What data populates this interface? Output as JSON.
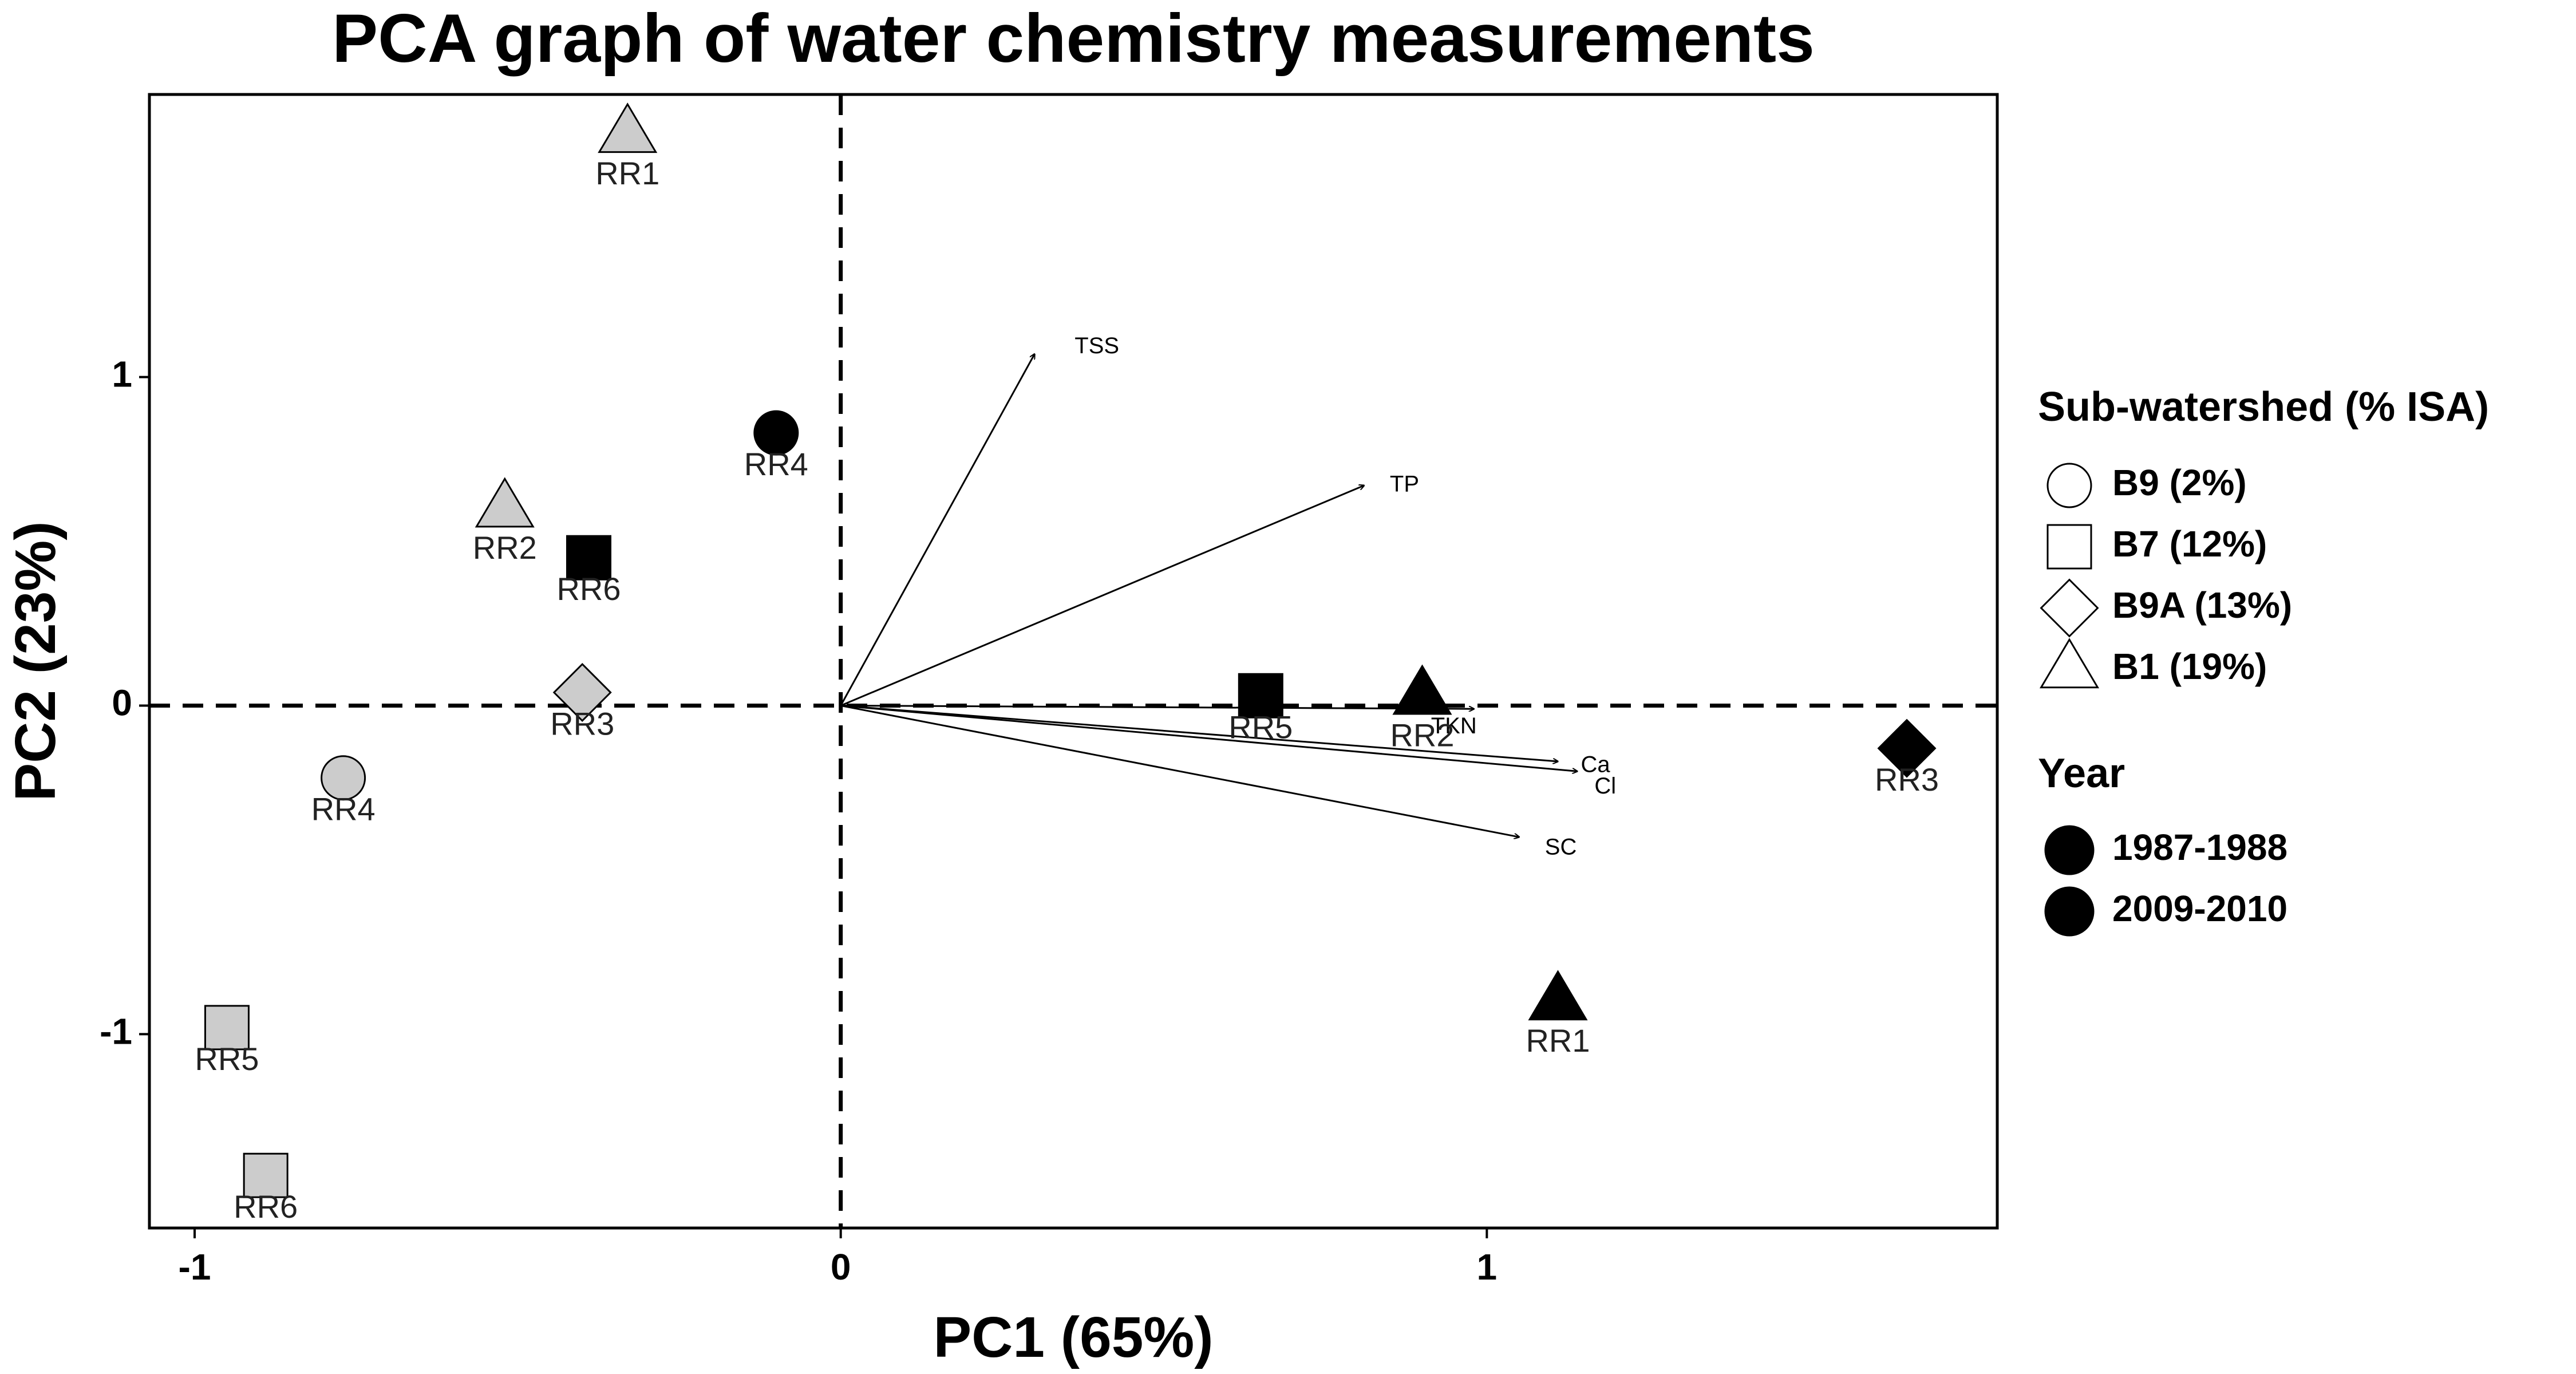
{
  "chart_data": {
    "type": "scatter",
    "title": "PCA graph of water chemistry measurements",
    "xlabel": "PC1 (65%)",
    "ylabel": "PC2 (23%)",
    "xlim": [
      -1.07,
      1.79
    ],
    "ylim": [
      -1.59,
      1.86
    ],
    "xticks": [
      -1,
      0,
      1
    ],
    "xtick_labels": [
      "-1",
      "0",
      "1"
    ],
    "yticks": [
      -1,
      0,
      1
    ],
    "ytick_labels": [
      "-1",
      "0",
      "1"
    ],
    "reference_lines": [
      "x = 0 (dashed)",
      "y = 0 (dashed)"
    ],
    "grid": false,
    "legend_position": "right",
    "legend": {
      "shape_title": "Sub-watershed (% ISA)",
      "shapes": [
        {
          "label": "B9 (2%)",
          "shape": "circle"
        },
        {
          "label": "B7 (12%)",
          "shape": "square"
        },
        {
          "label": "B9A (13%)",
          "shape": "diamond"
        },
        {
          "label": "B1 (19%)",
          "shape": "triangle"
        }
      ],
      "year_title": "Year",
      "years": [
        {
          "label": "1987-1988",
          "color": "#000000"
        },
        {
          "label": "2009-2010",
          "color": "#000000"
        }
      ]
    },
    "point_colors": {
      "1987-1988": "#000000",
      "2009-2010": "#cccccc"
    },
    "points": [
      {
        "label": "RR1",
        "shape": "triangle",
        "color": "#cccccc",
        "x": -0.33,
        "y": 1.74
      },
      {
        "label": "RR2",
        "shape": "triangle",
        "color": "#cccccc",
        "x": -0.52,
        "y": 0.6
      },
      {
        "label": "RR6",
        "shape": "square",
        "color": "#000000",
        "x": -0.39,
        "y": 0.45
      },
      {
        "label": "RR4",
        "shape": "circle",
        "color": "#000000",
        "x": -0.1,
        "y": 0.83
      },
      {
        "label": "RR3",
        "shape": "diamond",
        "color": "#cccccc",
        "x": -0.4,
        "y": 0.04
      },
      {
        "label": "RR4",
        "shape": "circle",
        "color": "#cccccc",
        "x": -0.77,
        "y": -0.22
      },
      {
        "label": "RR5",
        "shape": "square",
        "color": "#cccccc",
        "x": -0.95,
        "y": -0.98
      },
      {
        "label": "RR6",
        "shape": "square",
        "color": "#cccccc",
        "x": -0.89,
        "y": -1.43
      },
      {
        "label": "RR5",
        "shape": "square",
        "color": "#000000",
        "x": 0.65,
        "y": 0.03
      },
      {
        "label": "RR2",
        "shape": "triangle",
        "color": "#000000",
        "x": 0.9,
        "y": 0.03
      },
      {
        "label": "RR1",
        "shape": "triangle",
        "color": "#000000",
        "x": 1.11,
        "y": -0.9
      },
      {
        "label": "RR3",
        "shape": "diamond",
        "color": "#000000",
        "x": 1.65,
        "y": -0.13
      }
    ],
    "loadings": [
      {
        "label": "TSS",
        "x": 0.3,
        "y": 1.07
      },
      {
        "label": "TP",
        "x": 0.81,
        "y": 0.67
      },
      {
        "label": "TKN",
        "x": 0.98,
        "y": -0.01
      },
      {
        "label": "Ca",
        "x": 1.11,
        "y": -0.17
      },
      {
        "label": "Cl",
        "x": 1.14,
        "y": -0.2
      },
      {
        "label": "SC",
        "x": 1.05,
        "y": -0.4
      }
    ]
  }
}
